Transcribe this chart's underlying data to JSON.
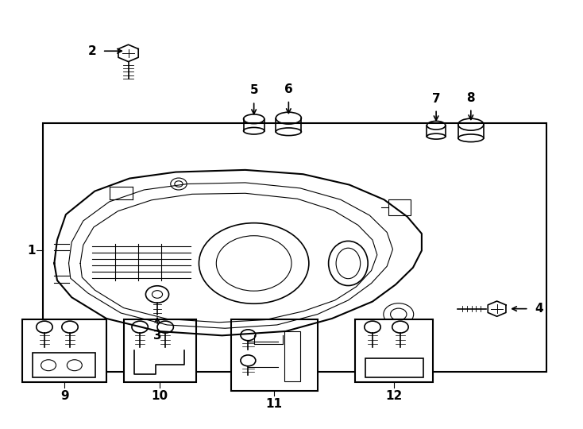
{
  "bg_color": "#ffffff",
  "line_color": "#000000",
  "fig_width": 7.34,
  "fig_height": 5.4
}
